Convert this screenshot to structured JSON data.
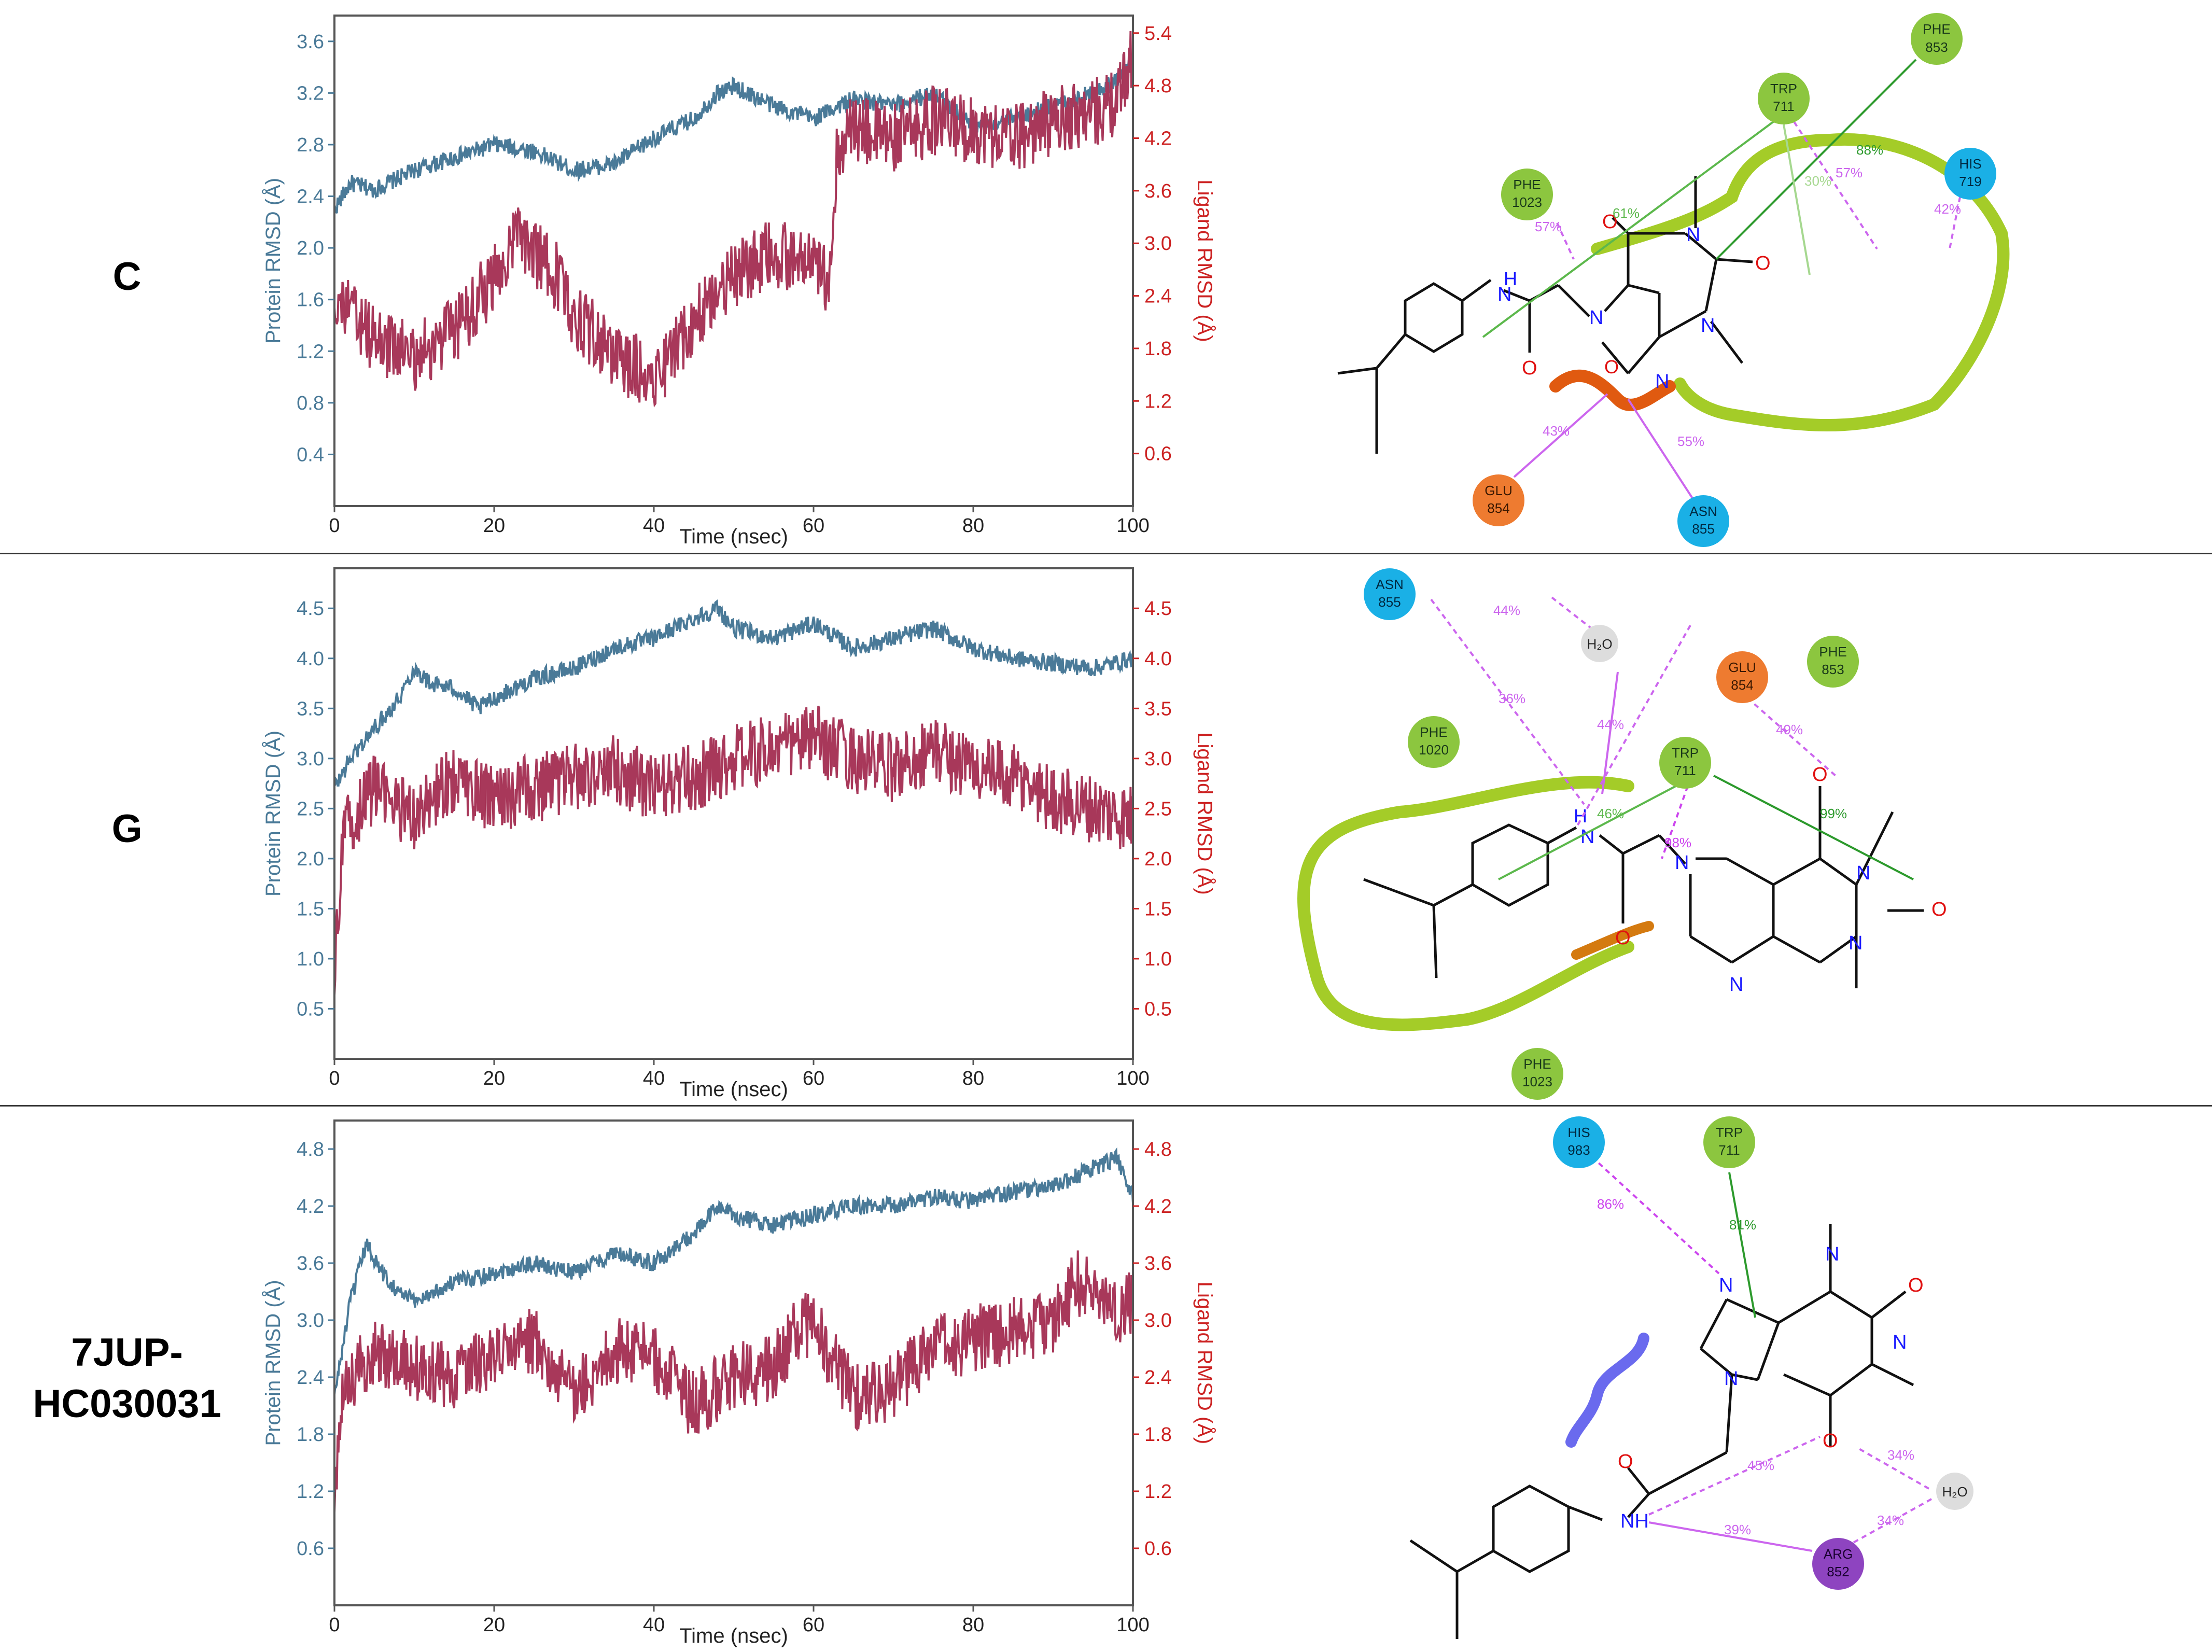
{
  "colors": {
    "protein": "#4a7a98",
    "ligand": "#a8385a",
    "right_axis": "#cc2222",
    "hydrophobic": "#8cc63f",
    "polar": "#1ab0e6",
    "negative": "#ee7b30",
    "positive": "#8e44c0",
    "water": "#dddddd",
    "hbond": "#cc66ee",
    "pipi": "#3a9a3a"
  },
  "panels": [
    {
      "label": "C",
      "chart_data": {
        "type": "line",
        "xlabel": "Time (nsec)",
        "ylabel_left": "Protein RMSD (Å)",
        "ylabel_right": "Ligand RMSD (Å)",
        "xlim": [
          0,
          100
        ],
        "xticks": [
          0,
          20,
          40,
          60,
          80,
          100
        ],
        "ylim_left": [
          0.0,
          3.8
        ],
        "yticks_left": [
          0.4,
          0.8,
          1.2,
          1.6,
          2.0,
          2.4,
          2.8,
          3.2,
          3.6
        ],
        "ylim_right": [
          0.0,
          5.6
        ],
        "yticks_right": [
          0.6,
          1.2,
          1.8,
          2.4,
          3.0,
          3.6,
          4.2,
          4.8,
          5.4
        ],
        "series": [
          {
            "axis": "left",
            "x": [
              0,
              2,
              5,
              10,
              15,
              20,
              25,
              30,
              35,
              40,
              45,
              48,
              50,
              55,
              60,
              63,
              65,
              70,
              75,
              80,
              85,
              90,
              95,
              98,
              100
            ],
            "values": [
              2.3,
              2.5,
              2.45,
              2.6,
              2.7,
              2.8,
              2.75,
              2.6,
              2.65,
              2.85,
              3.0,
              3.2,
              3.25,
              3.1,
              3.0,
              3.1,
              3.15,
              3.1,
              3.2,
              2.95,
              3.0,
              3.1,
              3.2,
              3.3,
              3.45
            ]
          },
          {
            "axis": "right",
            "x": [
              0,
              2,
              5,
              10,
              15,
              20,
              23,
              25,
              28,
              30,
              35,
              40,
              42,
              45,
              48,
              50,
              55,
              58,
              60,
              62,
              63,
              65,
              70,
              75,
              80,
              85,
              90,
              95,
              98,
              100
            ],
            "values": [
              2.4,
              2.2,
              1.9,
              1.7,
              2.0,
              2.6,
              3.1,
              2.9,
              2.6,
              2.2,
              1.7,
              1.5,
              1.7,
              2.1,
              2.5,
              2.6,
              2.9,
              2.8,
              2.7,
              2.6,
              4.1,
              4.3,
              4.2,
              4.4,
              4.3,
              4.2,
              4.4,
              4.5,
              4.6,
              5.2
            ]
          }
        ]
      },
      "residues": [
        {
          "name": "PHE",
          "num": "853",
          "type": "hydrophobic"
        },
        {
          "name": "TRP",
          "num": "711",
          "type": "hydrophobic"
        },
        {
          "name": "HIS",
          "num": "719",
          "type": "polar"
        },
        {
          "name": "PHE",
          "num": "1023",
          "type": "hydrophobic"
        },
        {
          "name": "GLU",
          "num": "854",
          "type": "negative"
        },
        {
          "name": "ASN",
          "num": "855",
          "type": "polar"
        }
      ],
      "interactions": [
        "88%",
        "61%",
        "30%",
        "57%",
        "42%",
        "57%",
        "43%",
        "55%"
      ]
    },
    {
      "label": "G",
      "chart_data": {
        "type": "line",
        "xlabel": "Time (nsec)",
        "ylabel_left": "Protein RMSD (Å)",
        "ylabel_right": "Ligand RMSD (Å)",
        "xlim": [
          0,
          100
        ],
        "xticks": [
          0,
          20,
          40,
          60,
          80,
          100
        ],
        "ylim_left": [
          0.0,
          4.9
        ],
        "yticks_left": [
          0.5,
          1.0,
          1.5,
          2.0,
          2.5,
          3.0,
          3.5,
          4.0,
          4.5
        ],
        "ylim_right": [
          0.0,
          4.9
        ],
        "yticks_right": [
          0.5,
          1.0,
          1.5,
          2.0,
          2.5,
          3.0,
          3.5,
          4.0,
          4.5
        ],
        "series": [
          {
            "axis": "left",
            "x": [
              0,
              2,
              5,
              8,
              10,
              12,
              15,
              18,
              20,
              25,
              30,
              35,
              40,
              45,
              48,
              50,
              55,
              60,
              65,
              70,
              75,
              80,
              85,
              90,
              95,
              100
            ],
            "values": [
              2.7,
              3.0,
              3.3,
              3.6,
              3.9,
              3.75,
              3.7,
              3.5,
              3.6,
              3.8,
              3.9,
              4.1,
              4.2,
              4.4,
              4.5,
              4.3,
              4.2,
              4.35,
              4.1,
              4.2,
              4.3,
              4.1,
              4.0,
              3.95,
              3.9,
              4.0
            ]
          },
          {
            "axis": "right",
            "x": [
              0,
              1,
              3,
              5,
              10,
              15,
              20,
              25,
              30,
              35,
              40,
              45,
              50,
              55,
              60,
              65,
              70,
              75,
              80,
              85,
              90,
              95,
              100
            ],
            "values": [
              0.8,
              2.2,
              2.5,
              2.7,
              2.4,
              2.8,
              2.6,
              2.7,
              2.8,
              2.9,
              2.7,
              2.8,
              3.0,
              3.1,
              3.2,
              3.0,
              2.9,
              3.1,
              2.9,
              2.8,
              2.6,
              2.5,
              2.4
            ]
          }
        ]
      },
      "residues": [
        {
          "name": "ASN",
          "num": "855",
          "type": "polar"
        },
        {
          "name": "PHE",
          "num": "853",
          "type": "hydrophobic"
        },
        {
          "name": "GLU",
          "num": "854",
          "type": "negative"
        },
        {
          "name": "PHE",
          "num": "1020",
          "type": "hydrophobic"
        },
        {
          "name": "TRP",
          "num": "711",
          "type": "hydrophobic"
        },
        {
          "name": "PHE",
          "num": "1023",
          "type": "hydrophobic"
        }
      ],
      "interactions": [
        "44%",
        "36%",
        "44%",
        "49%",
        "46%",
        "98%",
        "99%"
      ]
    },
    {
      "label": "7JUP-\nHC030031",
      "chart_data": {
        "type": "line",
        "xlabel": "Time (nsec)",
        "ylabel_left": "Protein RMSD (Å)",
        "ylabel_right": "Ligand RMSD (Å)",
        "xlim": [
          0,
          100
        ],
        "xticks": [
          0,
          20,
          40,
          60,
          80,
          100
        ],
        "ylim_left": [
          0.0,
          5.1
        ],
        "yticks_left": [
          0.6,
          1.2,
          1.8,
          2.4,
          3.0,
          3.6,
          4.2,
          4.8
        ],
        "ylim_right": [
          0.0,
          5.1
        ],
        "yticks_right": [
          0.6,
          1.2,
          1.8,
          2.4,
          3.0,
          3.6,
          4.2,
          4.8
        ],
        "series": [
          {
            "axis": "left",
            "x": [
              0,
              2,
              4,
              6,
              8,
              10,
              15,
              20,
              25,
              30,
              35,
              40,
              45,
              48,
              50,
              55,
              60,
              65,
              70,
              75,
              80,
              85,
              90,
              95,
              98,
              100
            ],
            "values": [
              2.2,
              3.2,
              3.8,
              3.5,
              3.3,
              3.2,
              3.4,
              3.5,
              3.6,
              3.5,
              3.7,
              3.6,
              3.9,
              4.2,
              4.1,
              4.0,
              4.1,
              4.2,
              4.2,
              4.3,
              4.25,
              4.35,
              4.4,
              4.6,
              4.7,
              4.3
            ]
          },
          {
            "axis": "right",
            "x": [
              0,
              1,
              3,
              5,
              10,
              15,
              20,
              25,
              30,
              35,
              40,
              45,
              50,
              55,
              58,
              60,
              62,
              65,
              70,
              75,
              80,
              85,
              90,
              93,
              95,
              98,
              100
            ],
            "values": [
              1.2,
              2.2,
              2.5,
              2.7,
              2.5,
              2.4,
              2.6,
              2.8,
              2.2,
              2.7,
              2.6,
              2.1,
              2.4,
              2.5,
              2.9,
              3.0,
              2.6,
              2.2,
              2.3,
              2.7,
              2.8,
              2.9,
              3.0,
              3.4,
              3.3,
              3.1,
              3.2
            ]
          }
        ]
      },
      "residues": [
        {
          "name": "HIS",
          "num": "983",
          "type": "polar"
        },
        {
          "name": "TRP",
          "num": "711",
          "type": "hydrophobic"
        },
        {
          "name": "ARG",
          "num": "852",
          "type": "positive"
        }
      ],
      "interactions": [
        "86%",
        "81%",
        "45%",
        "34%",
        "34%",
        "39%"
      ]
    }
  ]
}
